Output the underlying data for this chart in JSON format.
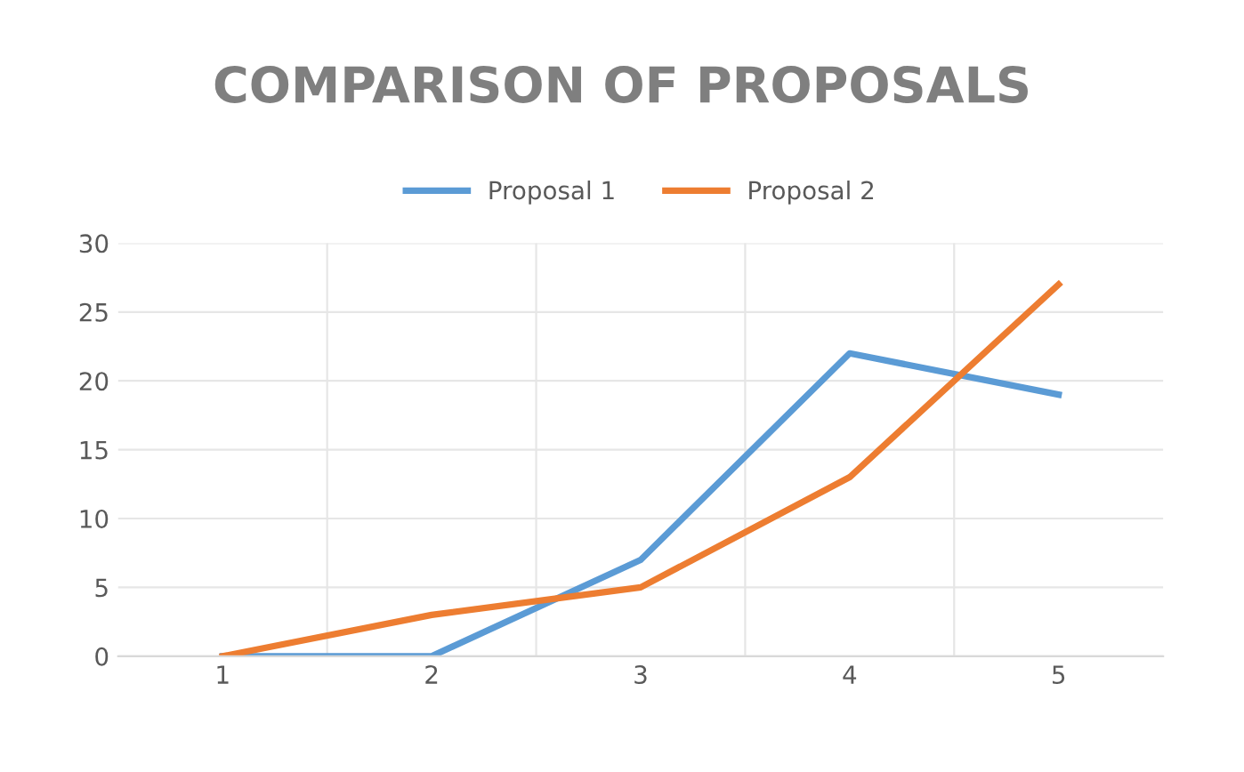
{
  "chart_data": {
    "type": "line",
    "title": "COMPARISON OF PROPOSALS",
    "categories": [
      "1",
      "2",
      "3",
      "4",
      "5"
    ],
    "series": [
      {
        "name": "Proposal 1",
        "color": "#5b9bd5",
        "values": [
          0,
          0,
          7,
          22,
          19
        ]
      },
      {
        "name": "Proposal 2",
        "color": "#ed7d31",
        "values": [
          0,
          3,
          5,
          13,
          27
        ]
      }
    ],
    "ylim": [
      0,
      30
    ],
    "yticks": [
      0,
      5,
      10,
      15,
      20,
      25,
      30
    ],
    "grid": true,
    "legend": "top",
    "marker": "none",
    "line_style": "solid"
  }
}
